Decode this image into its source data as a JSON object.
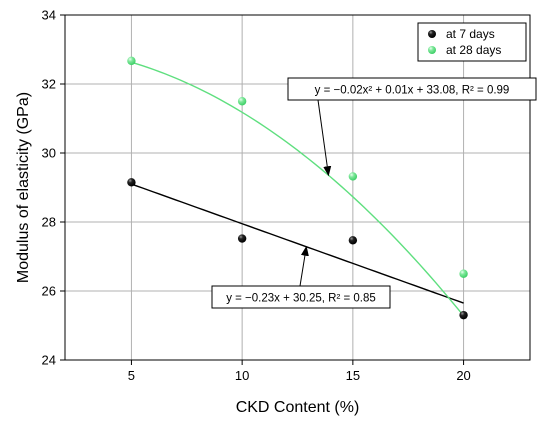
{
  "chart_data": {
    "type": "scatter",
    "xlabel": "CKD Content (%)",
    "ylabel": "Modulus of elasticity (GPa)",
    "xlim": [
      2,
      23
    ],
    "ylim": [
      24,
      34
    ],
    "x_ticks": [
      5,
      10,
      15,
      20
    ],
    "y_ticks": [
      24,
      26,
      28,
      30,
      32,
      34
    ],
    "grid": true,
    "legend_position": "top-right",
    "series": [
      {
        "name": "at 7 days",
        "color": "#000000",
        "x": [
          5,
          10,
          15,
          20
        ],
        "y": [
          29.15,
          27.52,
          27.47,
          25.3
        ],
        "fit": {
          "kind": "linear",
          "coefficients": [
            -0.23,
            30.25
          ],
          "x_range": [
            5,
            20
          ],
          "color": "#000000"
        }
      },
      {
        "name": "at 28 days",
        "color": "#5fdf7f",
        "x": [
          5,
          10,
          15,
          20
        ],
        "y": [
          32.67,
          31.5,
          29.32,
          26.5
        ],
        "fit": {
          "kind": "quadratic",
          "coefficients": [
            -0.02,
            0.01,
            33.08
          ],
          "x_range": [
            5,
            20
          ],
          "color": "#5fdf7f"
        }
      }
    ],
    "annotations": [
      {
        "series": 1,
        "text": "y = −0.02x² + 0.01x + 33.08, R² = 0.99",
        "arrow_to_x": 13.9
      },
      {
        "series": 0,
        "text": "y = −0.23x + 30.25, R² = 0.85",
        "arrow_to_x": 12.9
      }
    ]
  }
}
